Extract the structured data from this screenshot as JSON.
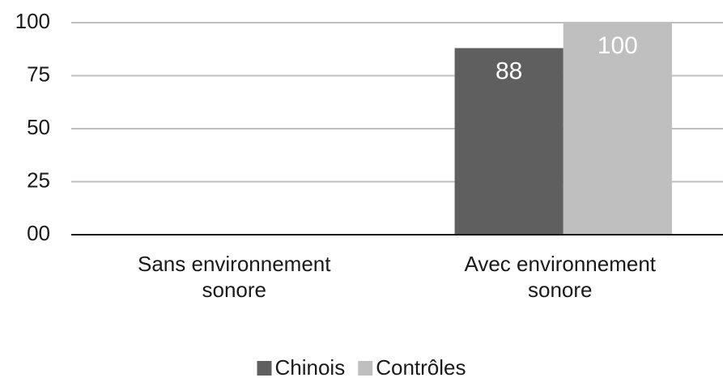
{
  "chart_data": {
    "type": "bar",
    "categories": [
      "Sans environnement sonore",
      "Avec environnement sonore"
    ],
    "series": [
      {
        "name": "Chinois",
        "color": "#5f5f5f",
        "values": [
          null,
          88
        ]
      },
      {
        "name": "Contrôles",
        "color": "#bfbfbf",
        "values": [
          null,
          100
        ]
      }
    ],
    "ylim": [
      0,
      100
    ],
    "yticks": [
      {
        "value": 0,
        "label": "00"
      },
      25,
      50,
      75,
      100
    ],
    "grid": true,
    "legend": "bottom"
  }
}
